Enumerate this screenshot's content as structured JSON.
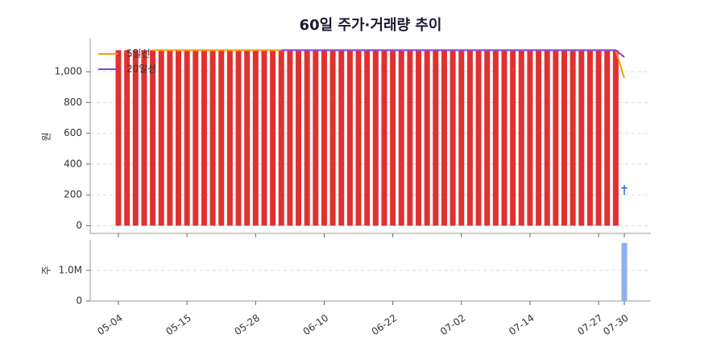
{
  "chart_data": {
    "type": "candlestick",
    "title": "60일 주가·거래량 추이",
    "y_label": "원",
    "volume_label": "주",
    "categories": [
      "05-04",
      null,
      null,
      null,
      null,
      null,
      null,
      null,
      "05-15",
      null,
      null,
      null,
      null,
      null,
      null,
      null,
      "05-28",
      null,
      null,
      null,
      null,
      null,
      null,
      null,
      "06-10",
      null,
      null,
      null,
      null,
      null,
      null,
      null,
      "06-22",
      null,
      null,
      null,
      null,
      null,
      null,
      null,
      "07-02",
      null,
      null,
      null,
      null,
      null,
      null,
      null,
      "07-14",
      null,
      null,
      null,
      null,
      null,
      null,
      null,
      "07-27",
      null,
      null,
      "07-30"
    ],
    "candles": {
      "up_color": "#e03131",
      "down_color": "#2f6fdd",
      "open": [
        0,
        0,
        0,
        0,
        0,
        0,
        0,
        0,
        0,
        0,
        0,
        0,
        0,
        0,
        0,
        0,
        0,
        0,
        0,
        0,
        0,
        0,
        0,
        0,
        0,
        0,
        0,
        0,
        0,
        0,
        0,
        0,
        0,
        0,
        0,
        0,
        0,
        0,
        0,
        0,
        0,
        0,
        0,
        0,
        0,
        0,
        0,
        0,
        0,
        0,
        0,
        0,
        0,
        0,
        0,
        0,
        0,
        0,
        0,
        250
      ],
      "high": [
        1140,
        1140,
        1140,
        1140,
        1140,
        1140,
        1140,
        1140,
        1140,
        1140,
        1140,
        1140,
        1140,
        1140,
        1140,
        1140,
        1140,
        1140,
        1140,
        1140,
        1140,
        1140,
        1140,
        1140,
        1140,
        1140,
        1140,
        1140,
        1140,
        1140,
        1140,
        1140,
        1140,
        1140,
        1140,
        1140,
        1140,
        1140,
        1140,
        1140,
        1140,
        1140,
        1140,
        1140,
        1140,
        1140,
        1140,
        1140,
        1140,
        1140,
        1140,
        1140,
        1140,
        1140,
        1140,
        1140,
        1140,
        1140,
        1140,
        265
      ],
      "low": [
        0,
        0,
        0,
        0,
        0,
        0,
        0,
        0,
        0,
        0,
        0,
        0,
        0,
        0,
        0,
        0,
        0,
        0,
        0,
        0,
        0,
        0,
        0,
        0,
        0,
        0,
        0,
        0,
        0,
        0,
        0,
        0,
        0,
        0,
        0,
        0,
        0,
        0,
        0,
        0,
        0,
        0,
        0,
        0,
        0,
        0,
        0,
        0,
        0,
        0,
        0,
        0,
        0,
        0,
        0,
        0,
        0,
        0,
        0,
        200
      ],
      "close": [
        1140,
        1140,
        1140,
        1140,
        1140,
        1140,
        1140,
        1140,
        1140,
        1140,
        1140,
        1140,
        1140,
        1140,
        1140,
        1140,
        1140,
        1140,
        1140,
        1140,
        1140,
        1140,
        1140,
        1140,
        1140,
        1140,
        1140,
        1140,
        1140,
        1140,
        1140,
        1140,
        1140,
        1140,
        1140,
        1140,
        1140,
        1140,
        1140,
        1140,
        1140,
        1140,
        1140,
        1140,
        1140,
        1140,
        1140,
        1140,
        1140,
        1140,
        1140,
        1140,
        1140,
        1140,
        1140,
        1140,
        1140,
        1140,
        1140,
        240
      ]
    },
    "series": [
      {
        "name": "5일선",
        "color": "#f59f00",
        "values": [
          null,
          null,
          null,
          null,
          1140,
          1140,
          1140,
          1140,
          1140,
          1140,
          1140,
          1140,
          1140,
          1140,
          1140,
          1140,
          1140,
          1140,
          1140,
          1140,
          1140,
          1140,
          1140,
          1140,
          1140,
          1140,
          1140,
          1140,
          1140,
          1140,
          1140,
          1140,
          1140,
          1140,
          1140,
          1140,
          1140,
          1140,
          1140,
          1140,
          1140,
          1140,
          1140,
          1140,
          1140,
          1140,
          1140,
          1140,
          1140,
          1140,
          1140,
          1140,
          1140,
          1140,
          1140,
          1140,
          1140,
          1140,
          1140,
          960
        ]
      },
      {
        "name": "20일선",
        "color": "#8b3fe0",
        "values": [
          null,
          null,
          null,
          null,
          null,
          null,
          null,
          null,
          null,
          null,
          null,
          null,
          null,
          null,
          null,
          null,
          null,
          null,
          null,
          1140,
          1140,
          1140,
          1140,
          1140,
          1140,
          1140,
          1140,
          1140,
          1140,
          1140,
          1140,
          1140,
          1140,
          1140,
          1140,
          1140,
          1140,
          1140,
          1140,
          1140,
          1140,
          1140,
          1140,
          1140,
          1140,
          1140,
          1140,
          1140,
          1140,
          1140,
          1140,
          1140,
          1140,
          1140,
          1140,
          1140,
          1140,
          1140,
          1140,
          1095
        ]
      }
    ],
    "volume": {
      "color": "#8fb0f0",
      "values": [
        0,
        0,
        0,
        0,
        0,
        0,
        0,
        0,
        0,
        0,
        0,
        0,
        0,
        0,
        0,
        0,
        0,
        0,
        0,
        0,
        0,
        0,
        0,
        0,
        0,
        0,
        0,
        0,
        0,
        0,
        0,
        0,
        0,
        0,
        0,
        0,
        0,
        0,
        0,
        0,
        0,
        0,
        0,
        0,
        0,
        0,
        0,
        0,
        0,
        0,
        0,
        0,
        0,
        0,
        0,
        0,
        0,
        0,
        0,
        1900000
      ]
    },
    "ylim": [
      -50,
      1215
    ],
    "yticks": [
      0,
      200,
      400,
      600,
      800,
      {
        "value": 1000,
        "label": "1,000"
      }
    ],
    "volume_ylim": [
      0,
      2000000
    ],
    "volume_yticks": [
      0,
      {
        "value": 1000000,
        "label": "1.0M"
      }
    ],
    "grid": true,
    "legend": "upper left"
  }
}
